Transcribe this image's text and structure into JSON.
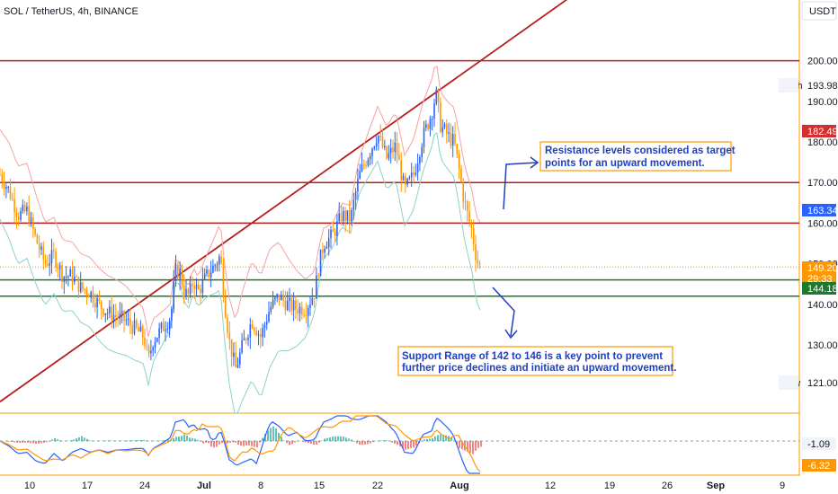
{
  "header": {
    "symbol_line": "SOL / TetherUS, 4h, BINANCE",
    "currency": "USDT"
  },
  "colors": {
    "up": "#2962ff",
    "down": "#ff9800",
    "bb_upper": "#f7a1a1",
    "bb_lower": "#8fd1c8",
    "trendline": "#b71c1c",
    "resistance": "#b71c1c",
    "support": "#1b7a2b",
    "annotation": "#1f3fbf",
    "box_border": "#ff9800",
    "macd": "#2962ff",
    "signal": "#ff9800",
    "hist_pos": "#26a69a",
    "hist_neg": "#ef5350"
  },
  "chart_data": {
    "type": "candlestick",
    "symbol": "SOL / TetherUS",
    "interval": "4h",
    "exchange": "BINANCE",
    "x_tick_labels": [
      "10",
      "17",
      "24",
      "Jul",
      "8",
      "15",
      "22",
      "Aug",
      "12",
      "19",
      "26",
      "Sep",
      "9"
    ],
    "y_ticks": [
      130,
      140,
      150,
      160,
      170,
      180,
      190,
      200
    ],
    "ylim": [
      115,
      210
    ],
    "price_markers": [
      {
        "label": "High",
        "value": "193.98",
        "kind": "text"
      },
      {
        "label": "",
        "value": "182.49",
        "kind": "red"
      },
      {
        "label": "",
        "value": "163.34",
        "kind": "blue"
      },
      {
        "label": "",
        "value": "149.20",
        "kind": "orange"
      },
      {
        "label": "",
        "value": "29:33",
        "kind": "orange-small"
      },
      {
        "label": "",
        "value": "144.18",
        "kind": "green"
      },
      {
        "label": "Low",
        "value": "121.00",
        "kind": "text"
      }
    ],
    "current_price": 149.2,
    "resistance_levels": [
      200,
      170,
      160
    ],
    "support_levels": [
      146,
      142
    ],
    "trendline": {
      "from_price": 116,
      "to_price": 215
    },
    "price_path": [
      [
        0,
        172
      ],
      [
        10,
        168
      ],
      [
        20,
        162
      ],
      [
        30,
        163
      ],
      [
        40,
        156
      ],
      [
        50,
        150
      ],
      [
        60,
        152
      ],
      [
        70,
        147
      ],
      [
        80,
        147
      ],
      [
        90,
        144
      ],
      [
        100,
        143
      ],
      [
        110,
        140
      ],
      [
        120,
        138
      ],
      [
        130,
        137
      ],
      [
        140,
        136
      ],
      [
        150,
        134
      ],
      [
        160,
        132
      ],
      [
        165,
        126
      ],
      [
        170,
        131
      ],
      [
        180,
        134
      ],
      [
        190,
        137
      ],
      [
        195,
        148
      ],
      [
        200,
        148
      ],
      [
        205,
        143
      ],
      [
        210,
        142
      ],
      [
        215,
        146
      ],
      [
        220,
        143
      ],
      [
        230,
        147
      ],
      [
        240,
        150
      ],
      [
        245,
        152
      ],
      [
        250,
        140
      ],
      [
        255,
        131
      ],
      [
        262,
        124
      ],
      [
        270,
        130
      ],
      [
        280,
        136
      ],
      [
        290,
        132
      ],
      [
        300,
        139
      ],
      [
        310,
        142
      ],
      [
        320,
        140
      ],
      [
        330,
        139
      ],
      [
        340,
        139
      ],
      [
        350,
        143
      ],
      [
        355,
        150
      ],
      [
        360,
        155
      ],
      [
        370,
        157
      ],
      [
        380,
        162
      ],
      [
        390,
        161
      ],
      [
        395,
        167
      ],
      [
        400,
        172
      ],
      [
        410,
        177
      ],
      [
        420,
        182
      ],
      [
        430,
        176
      ],
      [
        440,
        179
      ],
      [
        450,
        168
      ],
      [
        460,
        172
      ],
      [
        470,
        181
      ],
      [
        480,
        187
      ],
      [
        485,
        192
      ],
      [
        490,
        184
      ],
      [
        500,
        181
      ],
      [
        505,
        180
      ],
      [
        510,
        174
      ],
      [
        515,
        167
      ],
      [
        520,
        162
      ],
      [
        525,
        158
      ],
      [
        530,
        151
      ],
      [
        535,
        149
      ]
    ],
    "indicator": {
      "name": "MACD",
      "values_shown": [
        "-1.09",
        "-6.32"
      ]
    },
    "annotations": [
      {
        "text_line1": "Resistance levels considered as target",
        "text_line2": "points for an upward movement."
      },
      {
        "text_line1": "Support Range of 142 to 146 is a key point to prevent",
        "text_line2": "further price declines and initiate an upward movement."
      }
    ]
  }
}
